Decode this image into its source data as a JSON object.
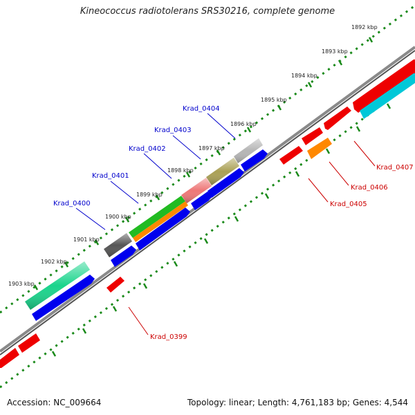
{
  "header": {
    "title": "Kineococcus radiotolerans SRS30216, complete genome"
  },
  "footer": {
    "accession": "Accession: NC_009664",
    "summary": "Topology: linear; Length: 4,761,183 bp; Genes: 4,544"
  },
  "colors": {
    "forward_label": "#0000cc",
    "reverse_label": "#cc0000",
    "forward_gene": "#0000ee",
    "reverse_gene": "#ee0000",
    "ruler": "#1a8a1a",
    "axis": "#888888"
  },
  "ruler": {
    "ticks": [
      "1892 kbp",
      "1893 kbp",
      "1894 kbp",
      "1895 kbp",
      "1896 kbp",
      "1897 kbp",
      "1898 kbp",
      "1899 kbp",
      "1900 kbp",
      "1901 kbp",
      "1902 kbp",
      "1903 kbp"
    ]
  },
  "genes": {
    "forward_labels": [
      "Krad_0400",
      "Krad_0401",
      "Krad_0402",
      "Krad_0403",
      "Krad_0404"
    ],
    "reverse_labels": [
      "Krad_0399",
      "Krad_0405",
      "Krad_0406",
      "Krad_0407"
    ]
  }
}
